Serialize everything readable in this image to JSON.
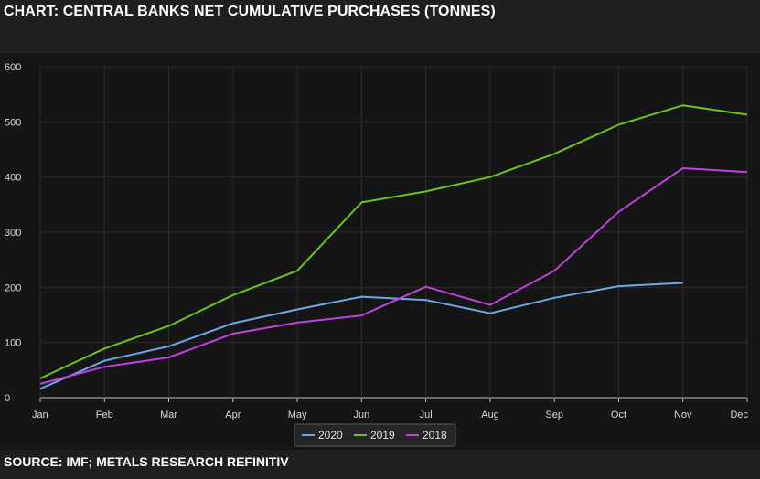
{
  "header": {
    "title": "CHART: CENTRAL BANKS NET CUMULATIVE PURCHASES (TONNES)"
  },
  "footer": {
    "source": "SOURCE: IMF; METALS RESEARCH REFINITIV"
  },
  "colors": {
    "2020": "#6ea6e8",
    "2019": "#6cc31e",
    "2018": "#c23fe0",
    "grid": "#2b2b2b",
    "axis": "#bfbfbf"
  },
  "chart_data": {
    "type": "line",
    "title": "CHART: CENTRAL BANKS NET CUMULATIVE PURCHASES (TONNES)",
    "xlabel": "",
    "ylabel": "",
    "categories": [
      "Jan",
      "Feb",
      "Mar",
      "Apr",
      "May",
      "Jun",
      "Jul",
      "Aug",
      "Sep",
      "Oct",
      "Nov",
      "Dec"
    ],
    "yticks": [
      0,
      100,
      200,
      300,
      400,
      500,
      600
    ],
    "ylim": [
      0,
      600
    ],
    "legend_position": "bottom-center",
    "series": [
      {
        "name": "2020",
        "color": "#6ea6e8",
        "values": [
          16,
          67,
          93,
          135,
          160,
          183,
          177,
          153,
          181,
          202,
          208,
          null
        ]
      },
      {
        "name": "2019",
        "color": "#6cc31e",
        "values": [
          35,
          89,
          130,
          186,
          230,
          354,
          374,
          400,
          442,
          495,
          530,
          513
        ]
      },
      {
        "name": "2018",
        "color": "#c23fe0",
        "values": [
          25,
          56,
          73,
          116,
          136,
          149,
          201,
          168,
          230,
          337,
          416,
          409
        ]
      }
    ]
  }
}
